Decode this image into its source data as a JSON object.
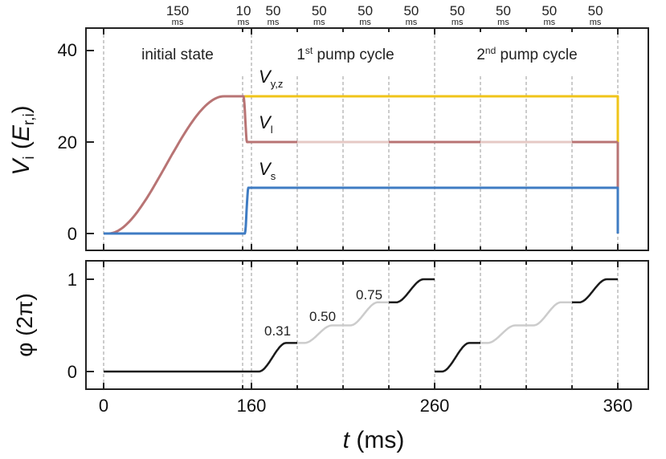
{
  "chart_data": [
    {
      "type": "line",
      "ylabel": {
        "main": "V",
        "sub": "i",
        "open": " (",
        "e": "E",
        "esub": "r,i",
        "close": ")"
      },
      "ylim": [
        -5,
        44
      ],
      "yticks": [
        "0",
        "20",
        "40"
      ],
      "xlim": [
        -10,
        368
      ],
      "grid": false,
      "phase_labels": [
        "initial state",
        "1",
        "st",
        " pump cycle",
        "2",
        "nd",
        " pump cycle"
      ],
      "segment_boundaries": [
        0,
        150,
        160,
        185,
        210,
        235,
        260,
        285,
        310,
        335,
        360
      ],
      "segment_durations": [
        "150",
        "10",
        "50",
        "50",
        "50",
        "50",
        "50",
        "50",
        "50",
        "50"
      ],
      "duration_unit": "ms",
      "series": [
        {
          "name": "V",
          "sub": "y,z",
          "color": "#f0c419",
          "start": 152,
          "end": 360,
          "level": 30
        },
        {
          "name": "V",
          "sub": "l",
          "color": "#b87474",
          "light_color": "#e6c9c5",
          "ramp": [
            0,
            30
          ],
          "level_after": 20,
          "dark_segments": [
            [
              152,
              185
            ],
            [
              235,
              285
            ],
            [
              335,
              360
            ]
          ]
        },
        {
          "name": "V",
          "sub": "s",
          "color": "#3f7cc3",
          "before": 0,
          "level": 10,
          "end": 360
        }
      ]
    },
    {
      "type": "line",
      "ylabel": "φ (2π)",
      "ylim": [
        -0.15,
        1.15
      ],
      "yticks": [
        "0",
        "1"
      ],
      "xlabel": {
        "t": "t",
        "unit": " (ms)"
      },
      "xticks": [
        "0",
        "160",
        "260",
        "360"
      ],
      "levels": [
        0,
        0.31,
        0.5,
        0.75,
        1
      ],
      "data_labels": [
        "0.31",
        "0.50",
        "0.75"
      ],
      "dark_color": "#1a1a1a",
      "light_color": "#cccccc"
    }
  ]
}
